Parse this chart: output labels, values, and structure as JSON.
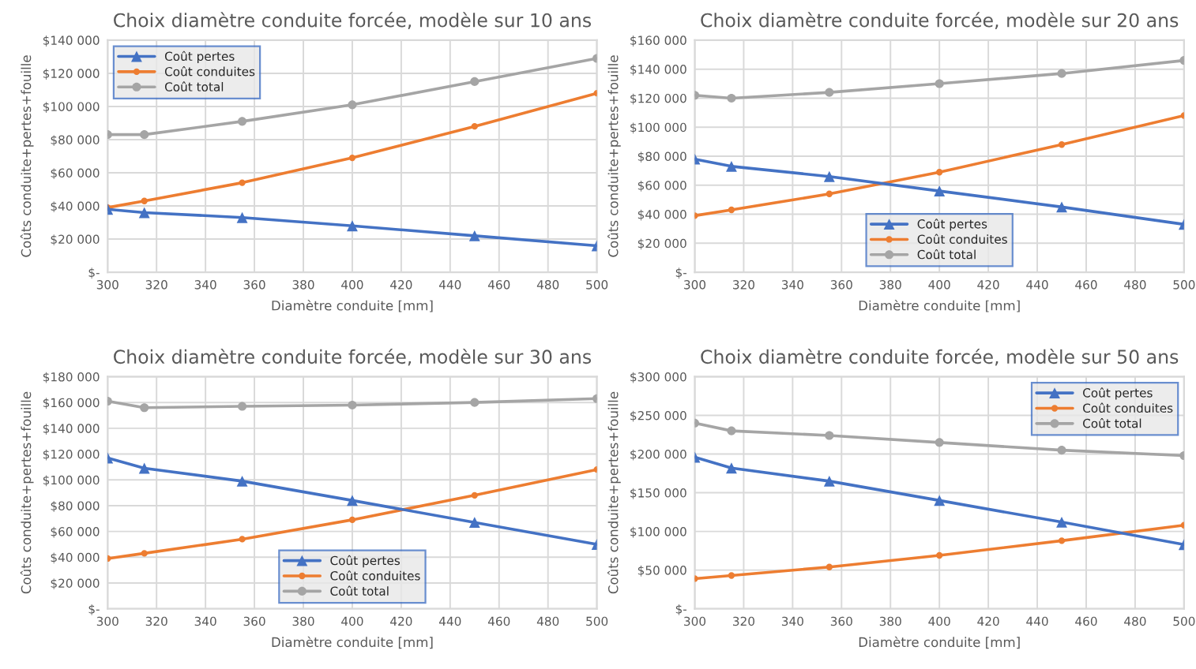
{
  "chart_data": [
    {
      "type": "line",
      "title": "Choix diamètre conduite forcée, modèle sur 10 ans",
      "xlabel": "Diamètre conduite [mm]",
      "ylabel": "Coûts conduite+pertes+fouille",
      "x": [
        300,
        315,
        355,
        400,
        450,
        500
      ],
      "xlim": [
        300,
        500
      ],
      "xticks": [
        300,
        320,
        340,
        360,
        380,
        400,
        420,
        440,
        460,
        480,
        500
      ],
      "ylim": [
        0,
        140000
      ],
      "yticks": [
        {
          "value": 0,
          "label": "$-"
        },
        {
          "value": 20000,
          "label": "$20 000"
        },
        {
          "value": 40000,
          "label": "$40 000"
        },
        {
          "value": 60000,
          "label": "$60 000"
        },
        {
          "value": 80000,
          "label": "$80 000"
        },
        {
          "value": 100000,
          "label": "$100 000"
        },
        {
          "value": 120000,
          "label": "$120 000"
        },
        {
          "value": 140000,
          "label": "$140 000"
        }
      ],
      "grid": true,
      "legend": "top left",
      "series": [
        {
          "name": "Coût pertes",
          "color": "#4472c4",
          "marker": "triangle",
          "values": [
            38000,
            36000,
            33000,
            28000,
            22000,
            16000
          ]
        },
        {
          "name": "Coût conduites",
          "color": "#ed7d31",
          "marker": "circle",
          "values": [
            39000,
            43000,
            54000,
            69000,
            88000,
            108000
          ]
        },
        {
          "name": "Coût total",
          "color": "#a5a5a5",
          "marker": "circle",
          "values": [
            83000,
            83000,
            91000,
            101000,
            115000,
            129000
          ]
        }
      ]
    },
    {
      "type": "line",
      "title": "Choix diamètre conduite forcée, modèle sur 20 ans",
      "xlabel": "Diamètre conduite [mm]",
      "ylabel": "Coûts conduite+pertes+fouille",
      "x": [
        300,
        315,
        355,
        400,
        450,
        500
      ],
      "xlim": [
        300,
        500
      ],
      "xticks": [
        300,
        320,
        340,
        360,
        380,
        400,
        420,
        440,
        460,
        480,
        500
      ],
      "ylim": [
        0,
        160000
      ],
      "yticks": [
        {
          "value": 0,
          "label": "$-"
        },
        {
          "value": 20000,
          "label": "$20 000"
        },
        {
          "value": 40000,
          "label": "$40 000"
        },
        {
          "value": 60000,
          "label": "$60 000"
        },
        {
          "value": 80000,
          "label": "$80 000"
        },
        {
          "value": 100000,
          "label": "$100 000"
        },
        {
          "value": 120000,
          "label": "$120 000"
        },
        {
          "value": 140000,
          "label": "$140 000"
        },
        {
          "value": 160000,
          "label": "$160 000"
        }
      ],
      "grid": true,
      "legend": "bottom",
      "series": [
        {
          "name": "Coût pertes",
          "color": "#4472c4",
          "marker": "triangle",
          "values": [
            78000,
            73000,
            66000,
            56000,
            45000,
            33000
          ]
        },
        {
          "name": "Coût conduites",
          "color": "#ed7d31",
          "marker": "circle",
          "values": [
            39000,
            43000,
            54000,
            69000,
            88000,
            108000
          ]
        },
        {
          "name": "Coût total",
          "color": "#a5a5a5",
          "marker": "circle",
          "values": [
            122000,
            120000,
            124000,
            130000,
            137000,
            146000
          ]
        }
      ]
    },
    {
      "type": "line",
      "title": "Choix diamètre conduite forcée, modèle sur 30 ans",
      "xlabel": "Diamètre conduite [mm]",
      "ylabel": "Coûts conduite+pertes+fouille",
      "x": [
        300,
        315,
        355,
        400,
        450,
        500
      ],
      "xlim": [
        300,
        500
      ],
      "xticks": [
        300,
        320,
        340,
        360,
        380,
        400,
        420,
        440,
        460,
        480,
        500
      ],
      "ylim": [
        0,
        180000
      ],
      "yticks": [
        {
          "value": 0,
          "label": "$-"
        },
        {
          "value": 20000,
          "label": "$20 000"
        },
        {
          "value": 40000,
          "label": "$40 000"
        },
        {
          "value": 60000,
          "label": "$60 000"
        },
        {
          "value": 80000,
          "label": "$80 000"
        },
        {
          "value": 100000,
          "label": "$100 000"
        },
        {
          "value": 120000,
          "label": "$120 000"
        },
        {
          "value": 140000,
          "label": "$140 000"
        },
        {
          "value": 160000,
          "label": "$160 000"
        },
        {
          "value": 180000,
          "label": "$180 000"
        }
      ],
      "grid": true,
      "legend": "bottom",
      "series": [
        {
          "name": "Coût pertes",
          "color": "#4472c4",
          "marker": "triangle",
          "values": [
            117000,
            109000,
            99000,
            84000,
            67000,
            50000
          ]
        },
        {
          "name": "Coût conduites",
          "color": "#ed7d31",
          "marker": "circle",
          "values": [
            39000,
            43000,
            54000,
            69000,
            88000,
            108000
          ]
        },
        {
          "name": "Coût total",
          "color": "#a5a5a5",
          "marker": "circle",
          "values": [
            161000,
            156000,
            157000,
            158000,
            160000,
            163000
          ]
        }
      ]
    },
    {
      "type": "line",
      "title": "Choix diamètre conduite forcée, modèle sur 50 ans",
      "xlabel": "Diamètre conduite [mm]",
      "ylabel": "Coûts conduite+pertes+fouille",
      "x": [
        300,
        315,
        355,
        400,
        450,
        500
      ],
      "xlim": [
        300,
        500
      ],
      "xticks": [
        300,
        320,
        340,
        360,
        380,
        400,
        420,
        440,
        460,
        480,
        500
      ],
      "ylim": [
        0,
        300000
      ],
      "yticks": [
        {
          "value": 0,
          "label": "$-"
        },
        {
          "value": 50000,
          "label": "$50 000"
        },
        {
          "value": 100000,
          "label": "$100 000"
        },
        {
          "value": 150000,
          "label": "$150 000"
        },
        {
          "value": 200000,
          "label": "$200 000"
        },
        {
          "value": 250000,
          "label": "$250 000"
        },
        {
          "value": 300000,
          "label": "$300 000"
        }
      ],
      "grid": true,
      "legend": "top right",
      "series": [
        {
          "name": "Coût pertes",
          "color": "#4472c4",
          "marker": "triangle",
          "values": [
            196000,
            182000,
            165000,
            140000,
            112000,
            83000
          ]
        },
        {
          "name": "Coût conduites",
          "color": "#ed7d31",
          "marker": "circle",
          "values": [
            39000,
            43000,
            54000,
            69000,
            88000,
            108000
          ]
        },
        {
          "name": "Coût total",
          "color": "#a5a5a5",
          "marker": "circle",
          "values": [
            240000,
            230000,
            224000,
            215000,
            205000,
            198000
          ]
        }
      ]
    }
  ]
}
